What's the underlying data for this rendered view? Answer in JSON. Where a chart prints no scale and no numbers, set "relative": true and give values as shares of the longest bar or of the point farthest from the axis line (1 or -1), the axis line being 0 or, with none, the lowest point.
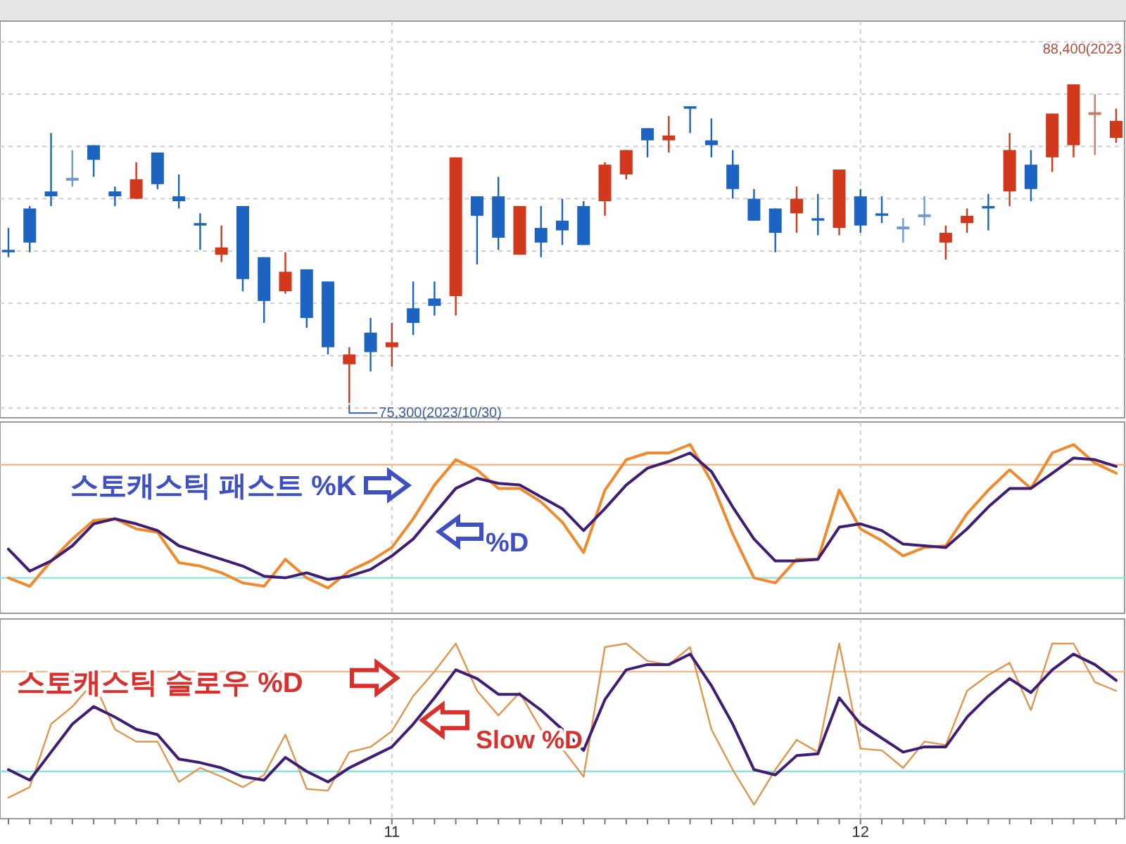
{
  "chart_data": [
    {
      "type": "candlestick",
      "categories": [
        null,
        null,
        null,
        null,
        null,
        null,
        null,
        null,
        null,
        null,
        null,
        null,
        null,
        null,
        null,
        null,
        null,
        null,
        "11",
        null,
        null,
        null,
        null,
        null,
        null,
        null,
        null,
        null,
        null,
        null,
        null,
        null,
        null,
        null,
        null,
        null,
        null,
        null,
        null,
        null,
        "12",
        null,
        null,
        null,
        null,
        null,
        null,
        null,
        null,
        null,
        null,
        null,
        null
      ],
      "ohlc": [
        [
          81600,
          82500,
          81300,
          81500
        ],
        [
          83300,
          83400,
          81500,
          81900
        ],
        [
          84000,
          86400,
          83400,
          83800
        ],
        [
          84500,
          85700,
          84200,
          84500
        ],
        [
          85900,
          85900,
          84600,
          85300
        ],
        [
          84000,
          84200,
          83400,
          83800
        ],
        [
          83700,
          85200,
          83700,
          84500
        ],
        [
          85600,
          85600,
          84100,
          84300
        ],
        [
          83800,
          84700,
          83300,
          83600
        ],
        [
          82700,
          83100,
          81600,
          82600
        ],
        [
          81400,
          82600,
          81100,
          81700
        ],
        [
          83400,
          83400,
          79900,
          80400
        ],
        [
          81300,
          81300,
          78600,
          79500
        ],
        [
          79900,
          81500,
          79800,
          80700
        ],
        [
          80800,
          80800,
          78400,
          78800
        ],
        [
          80300,
          80300,
          77300,
          77600
        ],
        [
          76900,
          77600,
          75300,
          77300
        ],
        [
          78200,
          78800,
          76600,
          77400
        ],
        [
          77600,
          78600,
          76800,
          77800
        ],
        [
          79200,
          80300,
          78100,
          78600
        ],
        [
          79600,
          80300,
          78900,
          79300
        ],
        [
          79700,
          85400,
          78900,
          85400
        ],
        [
          83800,
          83800,
          81000,
          83000
        ],
        [
          83800,
          84600,
          81600,
          82100
        ],
        [
          81400,
          83400,
          81400,
          83400
        ],
        [
          82500,
          83400,
          81300,
          81900
        ],
        [
          82800,
          83700,
          81800,
          82400
        ],
        [
          83400,
          83600,
          81800,
          81800
        ],
        [
          83600,
          85200,
          83000,
          85100
        ],
        [
          84700,
          85700,
          84500,
          85700
        ],
        [
          86600,
          86600,
          85400,
          86100
        ],
        [
          86100,
          87100,
          85600,
          86300
        ],
        [
          87500,
          87500,
          86400,
          87400
        ],
        [
          86100,
          87000,
          85400,
          85900
        ],
        [
          85100,
          85700,
          83700,
          84100
        ],
        [
          83700,
          84100,
          82800,
          82800
        ],
        [
          83300,
          83300,
          81500,
          82300
        ],
        [
          83100,
          84200,
          82300,
          83700
        ],
        [
          82900,
          83900,
          82200,
          82800
        ],
        [
          82500,
          84900,
          82200,
          84900
        ],
        [
          83800,
          84100,
          82300,
          82600
        ],
        [
          83100,
          83800,
          82700,
          83000
        ],
        [
          82500,
          82900,
          81900,
          82500
        ],
        [
          83000,
          83800,
          82600,
          83000
        ],
        [
          81900,
          82600,
          81200,
          82300
        ],
        [
          82700,
          83300,
          82300,
          83000
        ],
        [
          83400,
          83900,
          82400,
          83300
        ],
        [
          84000,
          86400,
          83400,
          85700
        ],
        [
          85100,
          85700,
          83600,
          84100
        ],
        [
          85400,
          87200,
          84800,
          87200
        ],
        [
          85900,
          88400,
          85400,
          88400
        ],
        [
          87200,
          88000,
          85500,
          87200
        ],
        [
          86200,
          87400,
          86000,
          86900
        ]
      ],
      "colors": [
        "#1c63c2",
        "#1c63c2",
        "#1c63c2",
        "#6f9bd0",
        "#1c63c2",
        "#1c63c2",
        "#d2381c",
        "#1c63c2",
        "#1c63c2",
        "#1c63c2",
        "#d2381c",
        "#1c63c2",
        "#1c63c2",
        "#d2381c",
        "#1c63c2",
        "#1c63c2",
        "#d2381c",
        "#1c63c2",
        "#d2381c",
        "#1c63c2",
        "#1c63c2",
        "#d2381c",
        "#1c63c2",
        "#1c63c2",
        "#d2381c",
        "#1c63c2",
        "#1c63c2",
        "#1c63c2",
        "#d2381c",
        "#d2381c",
        "#1c63c2",
        "#d2381c",
        "#1c63c2",
        "#1c63c2",
        "#1c63c2",
        "#1c63c2",
        "#1c63c2",
        "#d2381c",
        "#1c63c2",
        "#d2381c",
        "#1c63c2",
        "#1c63c2",
        "#6f9bd0",
        "#6f9bd0",
        "#d2381c",
        "#d2381c",
        "#1c63c2",
        "#d2381c",
        "#1c63c2",
        "#d2381c",
        "#d2381c",
        "#c08070",
        "#d2381c"
      ],
      "ylim": [
        74700,
        91000
      ],
      "yticks": [
        {
          "value": 75100,
          "label": null
        },
        {
          "value": 77250,
          "label": null
        },
        {
          "value": 79400,
          "label": null
        },
        {
          "value": 81550,
          "label": null
        },
        {
          "value": 83700,
          "label": null
        },
        {
          "value": 85850,
          "label": null
        },
        {
          "value": 88000,
          "label": null
        },
        {
          "value": 90150,
          "label": null
        }
      ],
      "grid": true,
      "tick_labels": false,
      "annotations": [
        "75,300(2023/10/30)",
        "88,400(2023"
      ]
    },
    {
      "type": "line",
      "categories": [
        null,
        null,
        null,
        null,
        null,
        null,
        null,
        null,
        null,
        null,
        null,
        null,
        null,
        null,
        null,
        null,
        null,
        null,
        "11",
        null,
        null,
        null,
        null,
        null,
        null,
        null,
        null,
        null,
        null,
        null,
        null,
        null,
        null,
        null,
        null,
        null,
        null,
        null,
        null,
        null,
        "12",
        null,
        null,
        null,
        null,
        null,
        null,
        null,
        null,
        null,
        null,
        null,
        null
      ],
      "relative": true,
      "series": [
        {
          "color": "#f08a2e",
          "values": [
            0.21,
            0.16,
            0.31,
            0.44,
            0.55,
            0.56,
            0.5,
            0.48,
            0.3,
            0.28,
            0.24,
            0.18,
            0.16,
            0.32,
            0.21,
            0.15,
            0.25,
            0.31,
            0.39,
            0.56,
            0.76,
            0.91,
            0.85,
            0.74,
            0.74,
            0.66,
            0.54,
            0.36,
            0.73,
            0.91,
            0.95,
            0.95,
            1,
            0.78,
            0.47,
            0.21,
            0.18,
            0.32,
            0.32,
            0.73,
            0.5,
            0.43,
            0.34,
            0.39,
            0.4,
            0.59,
            0.73,
            0.85,
            0.74,
            0.95,
            1,
            0.89,
            0.83
          ]
        },
        {
          "color": "#3f1d74",
          "values": [
            0.38,
            0.25,
            0.31,
            0.4,
            0.53,
            0.56,
            0.53,
            0.49,
            0.4,
            0.36,
            0.32,
            0.28,
            0.22,
            0.21,
            0.24,
            0.2,
            0.22,
            0.26,
            0.34,
            0.44,
            0.59,
            0.74,
            0.8,
            0.77,
            0.76,
            0.69,
            0.62,
            0.49,
            0.62,
            0.76,
            0.86,
            0.9,
            0.95,
            0.84,
            0.63,
            0.44,
            0.31,
            0.31,
            0.32,
            0.51,
            0.53,
            0.49,
            0.41,
            0.4,
            0.39,
            0.5,
            0.63,
            0.74,
            0.74,
            0.83,
            0.92,
            0.91,
            0.87
          ]
        }
      ],
      "ref_lines": [
        {
          "axis": "y",
          "value": 0.88,
          "color": "#f2b98a"
        },
        {
          "axis": "y",
          "value": 0.21,
          "color": "#8fe0e0"
        }
      ],
      "grid": "x",
      "tick_labels": false,
      "annotations": [
        "스토캐스틱 패스트  %K",
        "%D"
      ]
    },
    {
      "type": "line",
      "categories": [
        null,
        null,
        null,
        null,
        null,
        null,
        null,
        null,
        null,
        null,
        null,
        null,
        null,
        null,
        null,
        null,
        null,
        null,
        "11",
        null,
        null,
        null,
        null,
        null,
        null,
        null,
        null,
        null,
        null,
        null,
        null,
        null,
        null,
        null,
        null,
        null,
        null,
        null,
        null,
        null,
        "12",
        null,
        null,
        null,
        null,
        null,
        null,
        null,
        null,
        null,
        null,
        null,
        null
      ],
      "relative": true,
      "series": [
        {
          "color": "#e0964e",
          "values": [
            0.12,
            0.18,
            0.54,
            0.64,
            0.78,
            0.51,
            0.44,
            0.44,
            0.21,
            0.29,
            0.24,
            0.18,
            0.25,
            0.48,
            0.17,
            0.16,
            0.38,
            0.41,
            0.5,
            0.7,
            0.84,
            1,
            0.73,
            0.59,
            0.72,
            0.51,
            0.4,
            0.24,
            0.98,
            1,
            0.9,
            0.88,
            0.98,
            0.51,
            0.28,
            0.08,
            0.28,
            0.45,
            0.38,
            1,
            0.4,
            0.39,
            0.29,
            0.44,
            0.42,
            0.73,
            0.82,
            0.89,
            0.62,
            1,
            1,
            0.78,
            0.73
          ]
        },
        {
          "color": "#3f1d74",
          "values": [
            0.28,
            0.22,
            0.38,
            0.54,
            0.64,
            0.58,
            0.51,
            0.48,
            0.34,
            0.32,
            0.29,
            0.24,
            0.22,
            0.35,
            0.27,
            0.21,
            0.29,
            0.35,
            0.41,
            0.54,
            0.69,
            0.85,
            0.8,
            0.71,
            0.71,
            0.62,
            0.51,
            0.39,
            0.68,
            0.85,
            0.88,
            0.88,
            0.94,
            0.76,
            0.54,
            0.28,
            0.25,
            0.36,
            0.37,
            0.69,
            0.54,
            0.46,
            0.38,
            0.41,
            0.41,
            0.58,
            0.7,
            0.8,
            0.72,
            0.85,
            0.94,
            0.88,
            0.79
          ]
        }
      ],
      "ref_lines": [
        {
          "axis": "y",
          "value": 0.84,
          "color": "#f2b98a"
        },
        {
          "axis": "y",
          "value": 0.27,
          "color": "#8fe0e0"
        }
      ],
      "grid": "x",
      "tick_labels": "x",
      "annotations": [
        "스토캐스틱 슬로우  %D",
        "Slow %D"
      ]
    }
  ]
}
